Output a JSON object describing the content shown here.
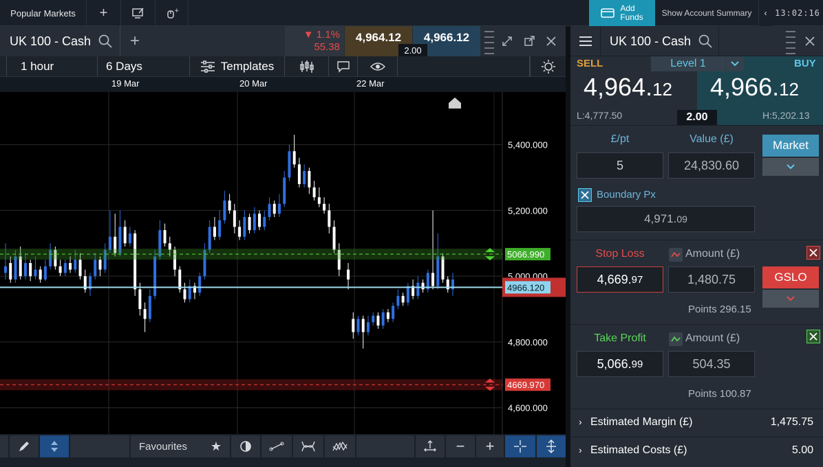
{
  "topbar": {
    "popular_markets": "Popular Markets",
    "add_funds_line1": "Add",
    "add_funds_line2": "Funds",
    "account_summary": "Show Account Summary",
    "clock": "13:02:16"
  },
  "chart_header": {
    "title": "UK 100 - Cash",
    "change_pct": "▼ 1.1%",
    "change_pts": "55.38",
    "bid": "4,964.12",
    "ask": "4,966.12",
    "spread": "2.00"
  },
  "chart_toolbar": {
    "interval": "1 hour",
    "range": "6 Days",
    "templates": "Templates"
  },
  "chart_data": {
    "type": "candlestick",
    "x_tick_labels": [
      "19 Mar",
      "20 Mar",
      "22 Mar"
    ],
    "y_tick_labels": [
      "5,400.000",
      "5,200.000",
      "5,000.000",
      "4,800.000",
      "4,600.000"
    ],
    "ylim": [
      4520,
      5560
    ],
    "levels": {
      "take_profit": "5066.990",
      "current": "4966.120",
      "stop_loss": "4669.970"
    },
    "candles": [
      {
        "o": 5010,
        "c": 5030,
        "h": 5100,
        "l": 4990
      },
      {
        "o": 5040,
        "c": 4990,
        "h": 5060,
        "l": 4980
      },
      {
        "o": 4990,
        "c": 5060,
        "h": 5080,
        "l": 4980
      },
      {
        "o": 5060,
        "c": 5000,
        "h": 5090,
        "l": 4990
      },
      {
        "o": 5000,
        "c": 5040,
        "h": 5070,
        "l": 4990
      },
      {
        "o": 5040,
        "c": 5000,
        "h": 5050,
        "l": 4985
      },
      {
        "o": 5000,
        "c": 5020,
        "h": 5060,
        "l": 4990
      },
      {
        "o": 5020,
        "c": 4990,
        "h": 5030,
        "l": 4980
      },
      {
        "o": 4990,
        "c": 5030,
        "h": 5050,
        "l": 4985
      },
      {
        "o": 5030,
        "c": 5080,
        "h": 5100,
        "l": 5020
      },
      {
        "o": 5080,
        "c": 5030,
        "h": 5090,
        "l": 5020
      },
      {
        "o": 5030,
        "c": 5010,
        "h": 5050,
        "l": 5000
      },
      {
        "o": 5010,
        "c": 5040,
        "h": 5050,
        "l": 5000
      },
      {
        "o": 5040,
        "c": 5020,
        "h": 5060,
        "l": 5010
      },
      {
        "o": 5020,
        "c": 5050,
        "h": 5080,
        "l": 5010
      },
      {
        "o": 5050,
        "c": 5000,
        "h": 5070,
        "l": 4990
      },
      {
        "o": 5000,
        "c": 4960,
        "h": 5020,
        "l": 4950
      },
      {
        "o": 4960,
        "c": 5000,
        "h": 5010,
        "l": 4940
      },
      {
        "o": 5000,
        "c": 5050,
        "h": 5070,
        "l": 4990
      },
      {
        "o": 5050,
        "c": 5020,
        "h": 5060,
        "l": 5000
      },
      {
        "o": 5020,
        "c": 5080,
        "h": 5100,
        "l": 5010
      },
      {
        "o": 5080,
        "c": 5120,
        "h": 5200,
        "l": 5070
      },
      {
        "o": 5120,
        "c": 5070,
        "h": 5190,
        "l": 5060
      },
      {
        "o": 5070,
        "c": 5150,
        "h": 5200,
        "l": 5060
      },
      {
        "o": 5150,
        "c": 5100,
        "h": 5170,
        "l": 5090
      },
      {
        "o": 5100,
        "c": 5130,
        "h": 5150,
        "l": 5090
      },
      {
        "o": 5130,
        "c": 4960,
        "h": 5140,
        "l": 4940
      },
      {
        "o": 4960,
        "c": 4900,
        "h": 4980,
        "l": 4880
      },
      {
        "o": 4900,
        "c": 4870,
        "h": 4920,
        "l": 4830
      },
      {
        "o": 4870,
        "c": 4940,
        "h": 4960,
        "l": 4860
      },
      {
        "o": 4940,
        "c": 5060,
        "h": 5080,
        "l": 4930
      },
      {
        "o": 5060,
        "c": 5140,
        "h": 5170,
        "l": 5050
      },
      {
        "o": 5140,
        "c": 5100,
        "h": 5160,
        "l": 5090
      },
      {
        "o": 5100,
        "c": 5080,
        "h": 5120,
        "l": 5060
      },
      {
        "o": 5080,
        "c": 5020,
        "h": 5090,
        "l": 5000
      },
      {
        "o": 5020,
        "c": 4960,
        "h": 5030,
        "l": 4950
      },
      {
        "o": 4960,
        "c": 4930,
        "h": 4980,
        "l": 4920
      },
      {
        "o": 4930,
        "c": 4970,
        "h": 4990,
        "l": 4920
      },
      {
        "o": 4970,
        "c": 4950,
        "h": 4980,
        "l": 4930
      },
      {
        "o": 4950,
        "c": 5000,
        "h": 5010,
        "l": 4940
      },
      {
        "o": 5000,
        "c": 5080,
        "h": 5100,
        "l": 4990
      },
      {
        "o": 5080,
        "c": 5150,
        "h": 5170,
        "l": 5070
      },
      {
        "o": 5150,
        "c": 5120,
        "h": 5180,
        "l": 5110
      },
      {
        "o": 5120,
        "c": 5170,
        "h": 5200,
        "l": 5110
      },
      {
        "o": 5170,
        "c": 5230,
        "h": 5260,
        "l": 5160
      },
      {
        "o": 5230,
        "c": 5200,
        "h": 5250,
        "l": 5190
      },
      {
        "o": 5200,
        "c": 5150,
        "h": 5220,
        "l": 5130
      },
      {
        "o": 5150,
        "c": 5120,
        "h": 5170,
        "l": 5110
      },
      {
        "o": 5120,
        "c": 5180,
        "h": 5200,
        "l": 5110
      },
      {
        "o": 5180,
        "c": 5140,
        "h": 5190,
        "l": 5130
      },
      {
        "o": 5140,
        "c": 5190,
        "h": 5210,
        "l": 5130
      },
      {
        "o": 5190,
        "c": 5150,
        "h": 5200,
        "l": 5140
      },
      {
        "o": 5150,
        "c": 5180,
        "h": 5200,
        "l": 5140
      },
      {
        "o": 5180,
        "c": 5220,
        "h": 5240,
        "l": 5170
      },
      {
        "o": 5220,
        "c": 5190,
        "h": 5230,
        "l": 5180
      },
      {
        "o": 5190,
        "c": 5220,
        "h": 5250,
        "l": 5180
      },
      {
        "o": 5220,
        "c": 5300,
        "h": 5320,
        "l": 5210
      },
      {
        "o": 5300,
        "c": 5380,
        "h": 5400,
        "l": 5290
      },
      {
        "o": 5380,
        "c": 5340,
        "h": 5430,
        "l": 5330
      },
      {
        "o": 5340,
        "c": 5280,
        "h": 5360,
        "l": 5270
      },
      {
        "o": 5280,
        "c": 5320,
        "h": 5340,
        "l": 5270
      },
      {
        "o": 5320,
        "c": 5270,
        "h": 5330,
        "l": 5250
      },
      {
        "o": 5270,
        "c": 5240,
        "h": 5290,
        "l": 5230
      },
      {
        "o": 5240,
        "c": 5220,
        "h": 5270,
        "l": 5210
      },
      {
        "o": 5220,
        "c": 5200,
        "h": 5240,
        "l": 5190
      },
      {
        "o": 5200,
        "c": 5150,
        "h": 5220,
        "l": 5130
      },
      {
        "o": 5150,
        "c": 5080,
        "h": 5170,
        "l": 5070
      },
      {
        "o": 5080,
        "c": 5020,
        "h": 5100,
        "l": 5000
      },
      {
        "o": 5020,
        "c": 4990,
        "h": 5040,
        "l": 4960
      },
      {
        "o": 4870,
        "c": 4830,
        "h": 4890,
        "l": 4810
      },
      {
        "o": 4830,
        "c": 4870,
        "h": 4880,
        "l": 4820
      },
      {
        "o": 4870,
        "c": 4830,
        "h": 4880,
        "l": 4780
      },
      {
        "o": 4830,
        "c": 4860,
        "h": 4880,
        "l": 4820
      },
      {
        "o": 4860,
        "c": 4880,
        "h": 4890,
        "l": 4850
      },
      {
        "o": 4880,
        "c": 4850,
        "h": 4890,
        "l": 4840
      },
      {
        "o": 4850,
        "c": 4890,
        "h": 4900,
        "l": 4840
      },
      {
        "o": 4890,
        "c": 4870,
        "h": 4900,
        "l": 4860
      },
      {
        "o": 4870,
        "c": 4910,
        "h": 4920,
        "l": 4860
      },
      {
        "o": 4910,
        "c": 4940,
        "h": 4960,
        "l": 4900
      },
      {
        "o": 4940,
        "c": 4920,
        "h": 4950,
        "l": 4910
      },
      {
        "o": 4920,
        "c": 4970,
        "h": 4980,
        "l": 4910
      },
      {
        "o": 4970,
        "c": 4940,
        "h": 4990,
        "l": 4930
      },
      {
        "o": 4940,
        "c": 4980,
        "h": 5000,
        "l": 4930
      },
      {
        "o": 4980,
        "c": 4960,
        "h": 4990,
        "l": 4950
      },
      {
        "o": 4960,
        "c": 5010,
        "h": 5020,
        "l": 4950
      },
      {
        "o": 5010,
        "c": 4970,
        "h": 5200,
        "l": 4960
      },
      {
        "o": 4970,
        "c": 5060,
        "h": 5130,
        "l": 4960
      },
      {
        "o": 5060,
        "c": 4990,
        "h": 5070,
        "l": 4980
      },
      {
        "o": 4990,
        "c": 4960,
        "h": 5000,
        "l": 4950
      },
      {
        "o": 4960,
        "c": 4990,
        "h": 5010,
        "l": 4940
      }
    ]
  },
  "bottom_toolbar": {
    "favourites": "Favourites"
  },
  "ticket": {
    "title": "UK 100 - Cash",
    "sell_label": "SELL",
    "buy_label": "BUY",
    "level": "Level 1",
    "sell_price_main": "4,964.",
    "sell_price_dec": "12",
    "buy_price_main": "4,966.",
    "buy_price_dec": "12",
    "low": "L:4,777.50",
    "high": "H:5,202.13",
    "spread": "2.00",
    "per_pt_label": "£/pt",
    "value_label": "Value (£)",
    "per_pt": "5",
    "value": "24,830.60",
    "order_type": "Market",
    "boundary_label": "Boundary Px",
    "boundary_main": "4,971.",
    "boundary_dec": "09",
    "stop_loss_label": "Stop Loss",
    "amount_label": "Amount (£)",
    "stop_main": "4,669.",
    "stop_dec": "97",
    "stop_amount": "1,480.75",
    "gslo": "GSLO",
    "stop_points": "Points 296.15",
    "take_profit_label": "Take Profit",
    "tp_main": "5,066.",
    "tp_dec": "99",
    "tp_amount": "504.35",
    "tp_points": "Points 100.87",
    "margin_label": "Estimated Margin (£)",
    "margin_value": "1,475.75",
    "costs_label": "Estimated Costs (£)",
    "costs_value": "5.00"
  }
}
